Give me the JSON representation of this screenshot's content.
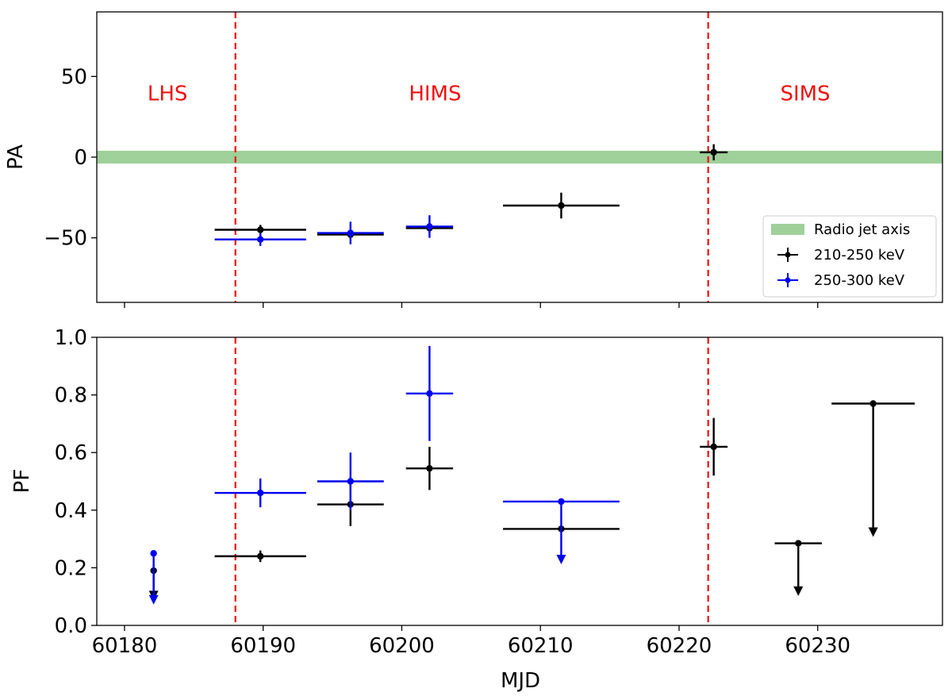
{
  "chart_data": [
    {
      "type": "scatter",
      "panel": "top",
      "ylabel": "PA",
      "xlabel": "",
      "xlim": [
        60178.0,
        60239.0
      ],
      "ylim": [
        -90,
        90
      ],
      "y_ticks": [
        -50,
        0,
        50
      ],
      "y_tick_labels": [
        "−50",
        "0",
        "50"
      ],
      "radio_jet_axis": {
        "y_range": [
          -2,
          2
        ],
        "color": "#9fd09a",
        "label": "Radio jet axis"
      },
      "state_boundaries": [
        60188.0,
        60222.1
      ],
      "state_labels": [
        {
          "text": "LHS",
          "x": 60183.1,
          "y": 40
        },
        {
          "text": "HIMS",
          "x": 60202.4,
          "y": 40
        },
        {
          "text": "SIMS",
          "x": 60229.1,
          "y": 40
        }
      ],
      "legend_position": "lower-right",
      "legend": [
        {
          "label": "Radio jet axis",
          "kind": "band"
        },
        {
          "label": "210-250 keV",
          "kind": "errorbar",
          "color": "#000000"
        },
        {
          "label": "250-300 keV",
          "kind": "errorbar",
          "color": "#0000ee"
        }
      ],
      "series": [
        {
          "name": "210-250 keV",
          "color": "#000000",
          "points": [
            {
              "x": 60189.8,
              "xerr": 3.3,
              "y": -45,
              "yerr": 3
            },
            {
              "x": 60196.3,
              "xerr": 2.4,
              "y": -48,
              "yerr": 3
            },
            {
              "x": 60202.0,
              "xerr": 1.7,
              "y": -44,
              "yerr": 3
            },
            {
              "x": 60211.5,
              "xerr": 4.2,
              "y": -30,
              "yerr": 8
            },
            {
              "x": 60222.5,
              "xerr": 1.0,
              "y": 3,
              "yerr": 5
            }
          ]
        },
        {
          "name": "250-300 keV",
          "color": "#0000ee",
          "points": [
            {
              "x": 60189.8,
              "xerr": 3.3,
              "y": -51,
              "yerr": 4
            },
            {
              "x": 60196.3,
              "xerr": 2.4,
              "y": -47,
              "yerr": 7
            },
            {
              "x": 60202.0,
              "xerr": 1.7,
              "y": -43,
              "yerr": 7
            }
          ]
        }
      ]
    },
    {
      "type": "scatter",
      "panel": "bottom",
      "ylabel": "PF",
      "xlabel": "MJD",
      "xlim": [
        60178.0,
        60239.0
      ],
      "ylim": [
        0.0,
        1.0
      ],
      "x_ticks": [
        60180,
        60190,
        60200,
        60210,
        60220,
        60230
      ],
      "y_ticks": [
        0.0,
        0.2,
        0.4,
        0.6,
        0.8,
        1.0
      ],
      "y_tick_labels": [
        "0.0",
        "0.2",
        "0.4",
        "0.6",
        "0.8",
        "1.0"
      ],
      "state_boundaries": [
        60188.0,
        60222.1
      ],
      "series": [
        {
          "name": "210-250 keV",
          "color": "#000000",
          "points": [
            {
              "x": 60182.1,
              "xerr": 0,
              "y": 0.19,
              "upper_limit": true,
              "arrow_to": 0.09
            },
            {
              "x": 60189.8,
              "xerr": 3.3,
              "y": 0.24,
              "yerr": 0.02
            },
            {
              "x": 60196.3,
              "xerr": 2.4,
              "y": 0.42,
              "yerr": 0.075
            },
            {
              "x": 60202.0,
              "xerr": 1.7,
              "y": 0.545,
              "yerr": 0.075
            },
            {
              "x": 60211.5,
              "xerr": 4.2,
              "y": 0.335,
              "yerr": 0
            },
            {
              "x": 60222.5,
              "xerr": 1.0,
              "y": 0.62,
              "yerr": 0.1
            },
            {
              "x": 60228.6,
              "xerr": 1.7,
              "y": 0.285,
              "upper_limit": true,
              "arrow_to": 0.105
            },
            {
              "x": 60234.0,
              "xerr": 3.0,
              "y": 0.77,
              "upper_limit": true,
              "arrow_to": 0.31
            }
          ]
        },
        {
          "name": "250-300 keV",
          "color": "#0000ee",
          "points": [
            {
              "x": 60182.1,
              "xerr": 0,
              "y": 0.25,
              "upper_limit": true,
              "arrow_to": 0.075
            },
            {
              "x": 60189.8,
              "xerr": 3.3,
              "y": 0.46,
              "yerr": 0.05
            },
            {
              "x": 60196.3,
              "xerr": 2.4,
              "y": 0.5,
              "yerr": 0.1
            },
            {
              "x": 60202.0,
              "xerr": 1.7,
              "y": 0.805,
              "yerr": 0.165
            },
            {
              "x": 60211.5,
              "xerr": 4.2,
              "y": 0.43,
              "upper_limit": true,
              "arrow_to": 0.215
            }
          ]
        }
      ]
    }
  ]
}
